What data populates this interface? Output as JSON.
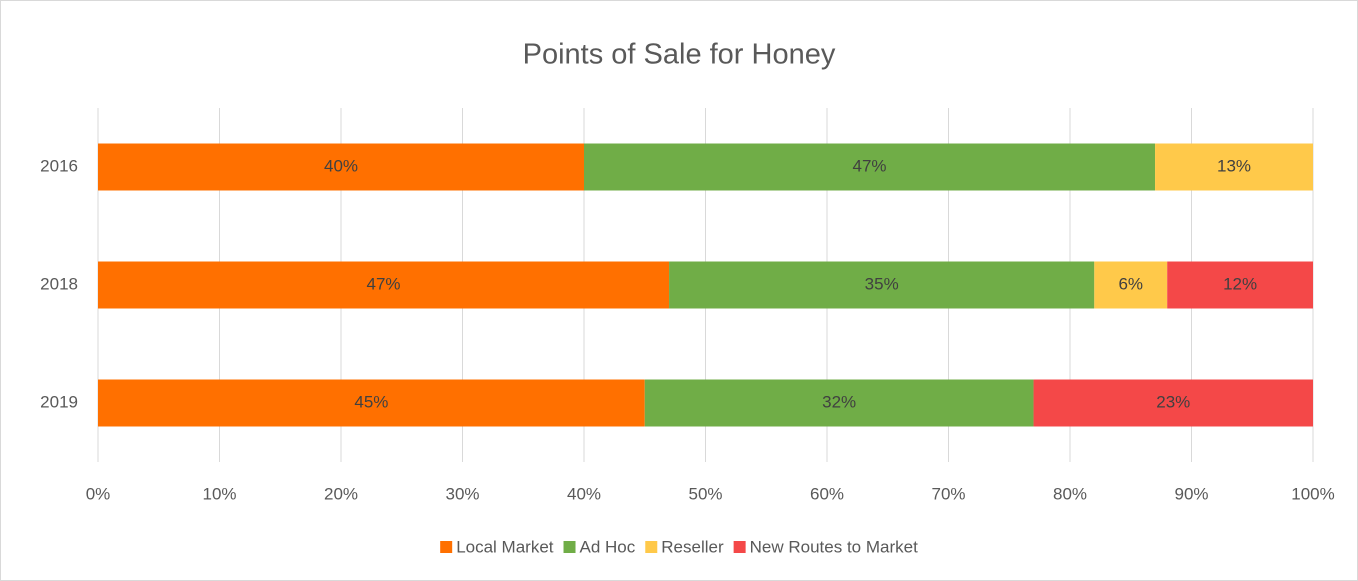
{
  "chart_data": {
    "type": "stacked-barh",
    "title": "Points of Sale for Honey",
    "categories": [
      "2016",
      "2018",
      "2019"
    ],
    "series": [
      {
        "name": "Local Market",
        "color": "#ff7000",
        "values": [
          40,
          47,
          45
        ],
        "value_labels": [
          "40%",
          "47%",
          "45%"
        ]
      },
      {
        "name": "Ad Hoc",
        "color": "#70ad47",
        "values": [
          47,
          35,
          32
        ],
        "value_labels": [
          "47%",
          "35%",
          "32%"
        ]
      },
      {
        "name": "Reseller",
        "color": "#ffc94a",
        "values": [
          13,
          6,
          null
        ],
        "value_labels": [
          "13%",
          "6%",
          null
        ]
      },
      {
        "name": "New Routes to Market",
        "color": "#f44848",
        "values": [
          null,
          12,
          23
        ],
        "value_labels": [
          null,
          "12%",
          "23%"
        ]
      }
    ],
    "xlim": [
      0,
      100
    ],
    "xticks": [
      {
        "value": 0,
        "label": "0%"
      },
      {
        "value": 10,
        "label": "10%"
      },
      {
        "value": 20,
        "label": "20%"
      },
      {
        "value": 30,
        "label": "30%"
      },
      {
        "value": 40,
        "label": "40%"
      },
      {
        "value": 50,
        "label": "50%"
      },
      {
        "value": 60,
        "label": "60%"
      },
      {
        "value": 70,
        "label": "70%"
      },
      {
        "value": 80,
        "label": "80%"
      },
      {
        "value": 90,
        "label": "90%"
      },
      {
        "value": 100,
        "label": "100%"
      }
    ],
    "grid": true,
    "legend": "bottom"
  }
}
